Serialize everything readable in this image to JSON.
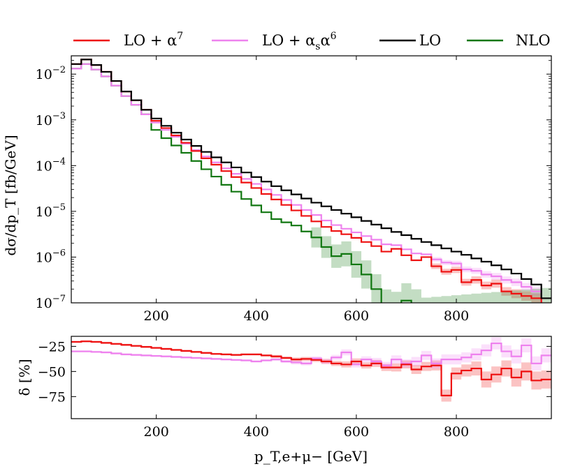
{
  "chart_data": [
    {
      "type": "line",
      "panel": "main",
      "step": true,
      "yscale": "log",
      "xlim": [
        30,
        990
      ],
      "ylim_exponent": [
        -7,
        -1.6
      ],
      "ylabel": "dσ/dp_T [fb/GeV]",
      "xlabel": "",
      "x_tick_values": [
        200,
        400,
        600,
        800
      ],
      "x_tick_labels": [
        "200",
        "400",
        "600",
        "800"
      ],
      "y_tick_exponents": [
        -7,
        -6,
        -5,
        -4,
        -3,
        -2
      ],
      "y_tick_base": "10",
      "y_tick_sups": [
        "−7",
        "−6",
        "−5",
        "−4",
        "−3",
        "−2"
      ],
      "bin_edges": [
        30,
        50,
        70,
        90,
        110,
        130,
        150,
        170,
        190,
        210,
        230,
        250,
        270,
        290,
        310,
        330,
        350,
        370,
        390,
        410,
        430,
        450,
        470,
        490,
        510,
        530,
        550,
        570,
        590,
        610,
        630,
        650,
        670,
        690,
        710,
        730,
        750,
        770,
        790,
        810,
        830,
        850,
        870,
        890,
        910,
        930,
        950,
        970,
        990
      ],
      "legend": [
        {
          "key": "lo_alpha7",
          "name_main": "LO + α",
          "name_sup": "7",
          "color": "#ee1111"
        },
        {
          "key": "lo_as_alpha6",
          "name_main": "LO + α",
          "name_sub": "s",
          "name_tail": "α",
          "name_sup": "6",
          "color": "#ee82ee"
        },
        {
          "key": "lo",
          "name_main": "LO",
          "color": "#000000"
        },
        {
          "key": "nlo",
          "name_main": "NLO",
          "color": "#117711"
        }
      ],
      "series": [
        {
          "name": "LO",
          "color": "#000000",
          "values": [
            -1.78,
            -1.68,
            -1.8,
            -1.95,
            -2.15,
            -2.38,
            -2.57,
            -2.78,
            -2.97,
            -3.13,
            -3.28,
            -3.43,
            -3.57,
            -3.7,
            -3.82,
            -3.93,
            -4.04,
            -4.15,
            -4.25,
            -4.35,
            -4.45,
            -4.54,
            -4.63,
            -4.72,
            -4.81,
            -4.89,
            -4.97,
            -5.05,
            -5.13,
            -5.21,
            -5.29,
            -5.37,
            -5.45,
            -5.52,
            -5.6,
            -5.67,
            -5.74,
            -5.81,
            -5.88,
            -5.95,
            -6.03,
            -6.1,
            -6.18,
            -6.27,
            -6.36,
            -6.48,
            -6.6,
            -6.9
          ]
        },
        {
          "name": "LO + α^7",
          "color": "#ee1111",
          "values": [
            -1.78,
            -1.68,
            -1.8,
            -1.95,
            -2.15,
            -2.38,
            -2.57,
            -2.78,
            -3.02,
            -3.18,
            -3.34,
            -3.5,
            -3.68,
            -3.84,
            -3.98,
            -4.12,
            -4.25,
            -4.37,
            -4.49,
            -4.62,
            -4.74,
            -4.86,
            -4.98,
            -5.1,
            -5.22,
            -5.34,
            -5.43,
            -5.5,
            -5.58,
            -5.67,
            -5.76,
            -5.88,
            -5.82,
            -5.96,
            -6.07,
            -6.0,
            -6.2,
            -6.32,
            -6.28,
            -6.55,
            -6.5,
            -6.62,
            -6.58,
            -6.75,
            -6.8,
            -6.85,
            -6.9,
            -7.1
          ]
        },
        {
          "name": "LO + αsα^6",
          "color": "#ee82ee",
          "values": [
            -1.88,
            -1.78,
            -1.9,
            -2.05,
            -2.25,
            -2.48,
            -2.67,
            -2.88,
            -3.06,
            -3.22,
            -3.37,
            -3.52,
            -3.66,
            -3.8,
            -3.93,
            -4.06,
            -4.18,
            -4.29,
            -4.4,
            -4.52,
            -4.64,
            -4.75,
            -4.86,
            -4.97,
            -5.08,
            -5.2,
            -5.3,
            -5.38,
            -5.46,
            -5.54,
            -5.62,
            -5.72,
            -5.74,
            -5.83,
            -5.92,
            -5.94,
            -6.05,
            -6.12,
            -6.14,
            -6.27,
            -6.3,
            -6.38,
            -6.42,
            -6.5,
            -6.55,
            -6.65,
            -6.75,
            -7.1
          ]
        },
        {
          "name": "NLO",
          "color": "#117711",
          "values": [
            -1.88,
            -1.78,
            -1.9,
            -2.05,
            -2.25,
            -2.48,
            -2.67,
            -2.88,
            -3.22,
            -3.4,
            -3.56,
            -3.72,
            -3.9,
            -4.08,
            -4.24,
            -4.42,
            -4.57,
            -4.73,
            -4.87,
            -5.02,
            -5.17,
            -5.24,
            -5.31,
            -5.44,
            -5.57,
            -5.78,
            -5.98,
            -5.93,
            -6.16,
            -6.38,
            -6.7,
            -7.05,
            -7.12,
            -6.95,
            -7.1,
            -7.3,
            -7.3,
            -7.3,
            -7.3,
            -7.3,
            -7.3,
            -7.3,
            -7.3,
            -7.3,
            -7.3,
            -7.3,
            -7.3,
            -7.3
          ]
        }
      ]
    },
    {
      "type": "line",
      "panel": "ratio",
      "step": true,
      "xlim": [
        30,
        990
      ],
      "ylim": [
        -97,
        -15
      ],
      "ylabel": "δ [%]",
      "xlabel": "p_T,e+μ− [GeV]",
      "x_tick_values": [
        200,
        400,
        600,
        800
      ],
      "x_tick_labels": [
        "200",
        "400",
        "600",
        "800"
      ],
      "y_tick_values": [
        -25,
        -50,
        -75
      ],
      "y_tick_labels": [
        "−25",
        "−50",
        "−75"
      ],
      "series": [
        {
          "name": "LO + α^7",
          "color": "#ee1111",
          "values": [
            -20.5,
            -20,
            -20.5,
            -21.5,
            -22.5,
            -23.5,
            -24.5,
            -25.5,
            -26.5,
            -27.5,
            -28.5,
            -29.5,
            -30.5,
            -31.5,
            -32.5,
            -33,
            -33.5,
            -33,
            -33,
            -34,
            -35,
            -36.5,
            -38,
            -37.5,
            -38.5,
            -40,
            -42,
            -43,
            -40,
            -44,
            -42,
            -46,
            -46,
            -43,
            -48,
            -45,
            -44,
            -74,
            -52,
            -49,
            -47,
            -58,
            -53,
            -47,
            -56,
            -50,
            -59,
            -58
          ],
          "band_half": [
            1,
            1,
            1,
            1,
            1,
            1,
            1,
            1,
            1,
            1,
            1,
            1,
            1,
            1,
            1,
            1,
            1,
            1,
            1,
            1,
            1.5,
            1.5,
            2,
            2,
            2,
            2.5,
            2.5,
            3,
            3,
            3,
            3.5,
            3.5,
            4,
            4,
            4.5,
            4.5,
            5,
            6,
            6,
            6,
            7,
            8,
            8,
            8,
            9,
            9,
            9,
            9
          ]
        },
        {
          "name": "LO + αsα^6",
          "color": "#ee82ee",
          "values": [
            -30,
            -30,
            -30.5,
            -31,
            -32,
            -33,
            -33.5,
            -34,
            -34.5,
            -35,
            -35.5,
            -36,
            -36.5,
            -37,
            -37.5,
            -38,
            -38.5,
            -39,
            -40,
            -39,
            -38,
            -40,
            -41,
            -42,
            -37,
            -40,
            -36,
            -31,
            -43,
            -38,
            -40,
            -44,
            -38,
            -42,
            -40,
            -34,
            -42,
            -38,
            -38,
            -36,
            -33,
            -29,
            -22,
            -30,
            -35,
            -24,
            -42,
            -34
          ],
          "band_half": [
            1,
            1,
            1,
            1,
            1,
            1,
            1,
            1,
            1,
            1,
            1,
            1,
            1,
            1,
            1,
            1,
            1,
            1,
            1,
            1,
            1.5,
            1.5,
            2,
            2,
            2,
            2.5,
            2.5,
            3,
            3,
            3,
            3.5,
            3.5,
            4,
            4,
            4.5,
            4.5,
            5,
            5,
            5,
            5,
            6,
            6,
            6,
            6,
            7,
            7,
            7,
            7
          ]
        }
      ]
    }
  ]
}
